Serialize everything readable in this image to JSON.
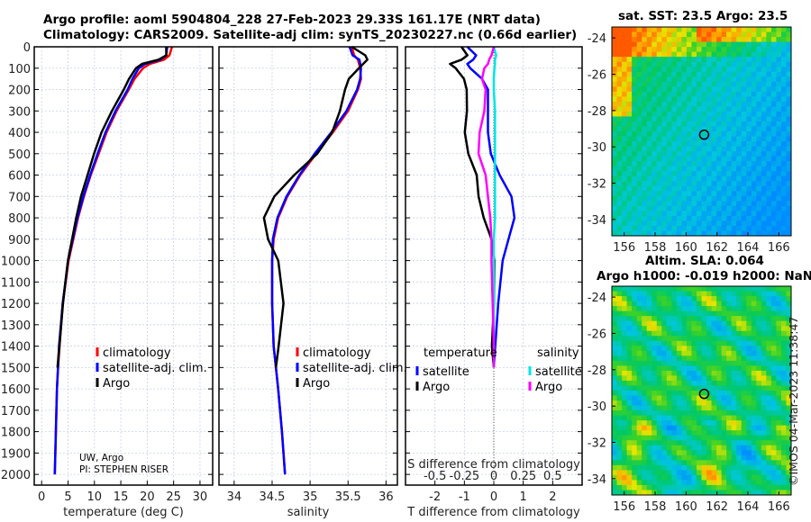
{
  "title_line1": "Argo profile: aoml 5904804_228 27-Feb-2023 29.33S 161.17E (NRT data)",
  "title_line2": "Climatology: CARS2009. Satellite-adj clim: synTS_20230227.nc (0.66d earlier)",
  "map1_title": "sat. SST: 23.5 Argo: 23.5",
  "map2_title1": "Altim. SLA: 0.064",
  "map2_title2": "Argo h1000: -0.019 h2000: NaN",
  "copyright": "©IMOS 04-Mar-2023 11:38:47",
  "note1": "UW, Argo",
  "note2": "PI: STEPHEN RISER",
  "colors": {
    "climatology": "#ff0000",
    "satellite": "#0000ff",
    "argo": "#000000",
    "sal_sat": "#00e5e5",
    "sal_argo": "#ff00ff"
  },
  "chart_data": [
    {
      "type": "line",
      "xlabel": "temperature (deg C)",
      "ylabel": "",
      "xlim": [
        -1.4,
        32.4
      ],
      "ylim": [
        2050,
        0
      ],
      "xticks": [
        0,
        5,
        10,
        15,
        20,
        25,
        30
      ],
      "yticks": [
        0,
        100,
        200,
        300,
        400,
        500,
        600,
        700,
        800,
        900,
        1000,
        1100,
        1200,
        1300,
        1400,
        1500,
        1600,
        1700,
        1800,
        1900,
        2000
      ],
      "legend": [
        "climatology",
        "satellite-adj. clim.",
        "Argo"
      ],
      "depth": [
        0,
        40,
        60,
        80,
        100,
        150,
        200,
        300,
        400,
        500,
        600,
        700,
        800,
        1000,
        1200,
        1400,
        1500,
        1600,
        1800,
        2000
      ],
      "series": [
        {
          "name": "climatology",
          "values": [
            24.7,
            24.2,
            23.2,
            20.5,
            19.2,
            17.6,
            16.5,
            14.2,
            12.3,
            10.8,
            9.3,
            8.0,
            6.9,
            5.1,
            4.0,
            3.4,
            3.1,
            2.9,
            2.7,
            2.5
          ]
        },
        {
          "name": "satellite-adj. clim.",
          "values": [
            23.8,
            23.6,
            22.5,
            19.6,
            18.4,
            17.2,
            16.3,
            14.0,
            12.1,
            10.6,
            9.2,
            7.9,
            6.8,
            5.0,
            4.0,
            3.3,
            3.1,
            2.9,
            2.7,
            2.5
          ]
        },
        {
          "name": "Argo",
          "values": [
            23.6,
            23.5,
            22.0,
            19.0,
            18.0,
            16.7,
            15.6,
            13.2,
            11.2,
            9.9,
            8.8,
            7.6,
            6.6,
            4.9,
            3.9,
            3.3,
            3.0,
            null,
            null,
            null
          ]
        }
      ]
    },
    {
      "type": "line",
      "xlabel": "salinity",
      "xlim": [
        33.8,
        36.15
      ],
      "ylim": [
        2050,
        0
      ],
      "xticks": [
        34,
        34.5,
        35,
        35.5,
        36
      ],
      "legend": [
        "climatology",
        "satellite-adj. clim.",
        "Argo"
      ],
      "depth": [
        0,
        40,
        60,
        100,
        150,
        200,
        300,
        400,
        500,
        600,
        700,
        800,
        900,
        1000,
        1200,
        1400,
        1500,
        1600,
        1800,
        2000
      ],
      "series": [
        {
          "name": "climatology",
          "values": [
            35.55,
            35.58,
            35.63,
            35.66,
            35.67,
            35.63,
            35.5,
            35.3,
            35.08,
            34.87,
            34.7,
            34.58,
            34.52,
            34.5,
            34.5,
            34.52,
            34.55,
            34.58,
            34.63,
            34.67
          ]
        },
        {
          "name": "satellite-adj. clim.",
          "values": [
            35.52,
            35.56,
            35.65,
            35.67,
            35.66,
            35.62,
            35.48,
            35.28,
            35.06,
            34.86,
            34.69,
            34.57,
            34.51,
            34.5,
            34.5,
            34.52,
            34.55,
            34.58,
            34.63,
            34.67
          ]
        },
        {
          "name": "Argo",
          "values": [
            35.55,
            35.6,
            35.62,
            35.63,
            35.63,
            35.6,
            35.42,
            35.18,
            34.95,
            34.75,
            34.63,
            34.54,
            34.5,
            34.49,
            34.5,
            34.52,
            34.55,
            null,
            null,
            null
          ]
        }
      ]
    },
    {
      "type": "line",
      "xlabel": "T difference from climatology",
      "xlabel2": "S difference from climatology",
      "xlim": [
        -3,
        3
      ],
      "ylim": [
        2050,
        0
      ],
      "xticks": [
        -2,
        -1,
        0,
        1,
        2
      ],
      "xticks2": [
        -0.5,
        -0.25,
        0,
        0.25,
        0.5
      ],
      "legend_temp_title": "temperature",
      "legend_sal_title": "salinity",
      "legend": [
        "satellite",
        "Argo",
        "satellite",
        "Argo"
      ],
      "depth": [
        0,
        40,
        60,
        80,
        100,
        150,
        200,
        300,
        400,
        500,
        600,
        700,
        800,
        900,
        1000,
        1200,
        1400,
        1500
      ],
      "series": [
        {
          "name": "T satellite",
          "values": [
            -0.9,
            -0.6,
            -0.7,
            -0.9,
            -0.8,
            -0.4,
            -0.2,
            -0.2,
            -0.2,
            -0.1,
            0.2,
            0.6,
            0.7,
            0.5,
            0.3,
            0.15,
            0.05,
            0
          ]
        },
        {
          "name": "T Argo",
          "values": [
            -1.1,
            -1.0,
            -1.2,
            -1.5,
            -1.2,
            -0.9,
            -0.9,
            -1.0,
            -1.1,
            -0.9,
            -0.5,
            -0.4,
            -0.3,
            -0.15,
            -0.1,
            -0.05,
            0,
            0
          ]
        },
        {
          "name": "S satellite",
          "values": [
            0,
            0.02,
            0.01,
            0.01,
            0.005,
            0,
            0,
            0.01,
            0.01,
            0.01,
            0.01,
            0.01,
            0.01,
            0,
            0,
            0,
            0,
            0
          ]
        },
        {
          "name": "S Argo",
          "values": [
            0,
            -0.02,
            -0.04,
            -0.05,
            -0.08,
            -0.1,
            -0.07,
            -0.08,
            -0.12,
            -0.13,
            -0.07,
            -0.05,
            -0.03,
            -0.02,
            -0.02,
            -0.01,
            0,
            0
          ]
        }
      ]
    },
    {
      "type": "heatmap",
      "title": "sat. SST: 23.5 Argo: 23.5",
      "yticks": [
        -24,
        -26,
        -28,
        -30,
        -32,
        -34
      ],
      "xticks": [
        156,
        158,
        160,
        162,
        164,
        166
      ],
      "lonlim": [
        155.2,
        166.8
      ],
      "latlim": [
        -23.4,
        -34.9
      ],
      "marker": [
        161.17,
        -29.33
      ]
    },
    {
      "type": "heatmap",
      "title": "Altim. SLA: 0.064",
      "yticks": [
        -24,
        -26,
        -28,
        -30,
        -32,
        -34
      ],
      "xticks": [
        156,
        158,
        160,
        162,
        164,
        166
      ],
      "lonlim": [
        155.2,
        166.8
      ],
      "latlim": [
        -23.4,
        -34.9
      ],
      "marker": [
        161.17,
        -29.33
      ]
    }
  ]
}
